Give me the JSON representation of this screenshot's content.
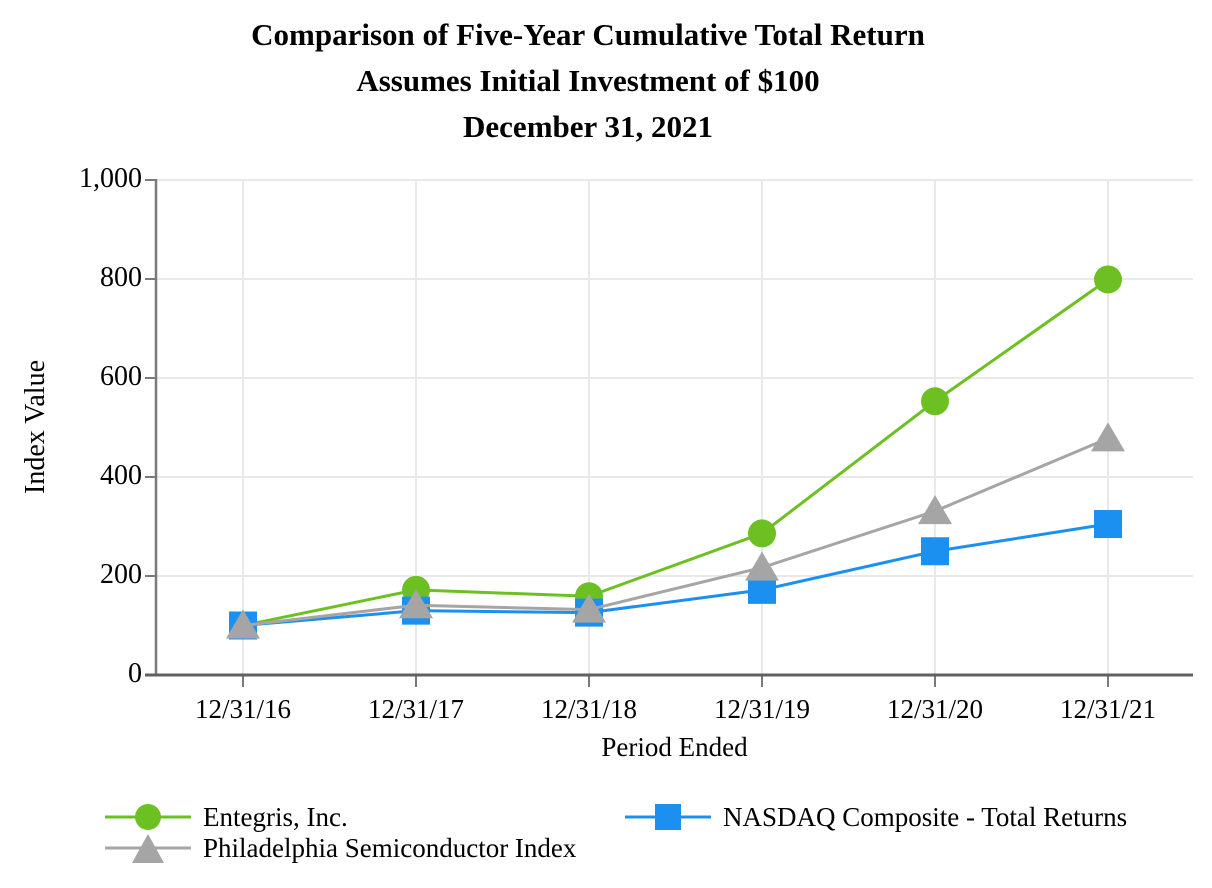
{
  "title_lines": [
    "Comparison of Five-Year Cumulative Total Return",
    "Assumes Initial Investment of $100",
    "December 31, 2021"
  ],
  "chart_data": {
    "type": "line",
    "title": "Comparison of Five-Year Cumulative Total Return",
    "subtitle": "Assumes Initial Investment of $100",
    "date_line": "December 31, 2021",
    "xlabel": "Period Ended",
    "ylabel": "Index Value",
    "categories": [
      "12/31/16",
      "12/31/17",
      "12/31/18",
      "12/31/19",
      "12/31/20",
      "12/31/21"
    ],
    "ylim": [
      0,
      1000
    ],
    "yticks": [
      0,
      200,
      400,
      600,
      800,
      1000
    ],
    "ytick_labels": [
      "0",
      "200",
      "400",
      "600",
      "800",
      "1,000"
    ],
    "grid": true,
    "legend_position": "bottom",
    "series": [
      {
        "name": "Entegris, Inc.",
        "marker": "circle",
        "color": "#6CC022",
        "values": [
          100,
          172,
          159,
          286,
          553,
          799
        ]
      },
      {
        "name": "NASDAQ Composite - Total Returns",
        "marker": "square",
        "color": "#1B90F0",
        "values": [
          100,
          130,
          126,
          172,
          250,
          305
        ]
      },
      {
        "name": "Philadelphia Semiconductor Index",
        "marker": "triangle",
        "color": "#A5A5A5",
        "values": [
          100,
          141,
          132,
          217,
          331,
          478
        ]
      }
    ]
  },
  "colors": {
    "grid": "#E9E9E9",
    "axis": "#7A7A7A",
    "axis_bottom": "#606060",
    "text": "#000000",
    "background": "#FFFFFF"
  }
}
